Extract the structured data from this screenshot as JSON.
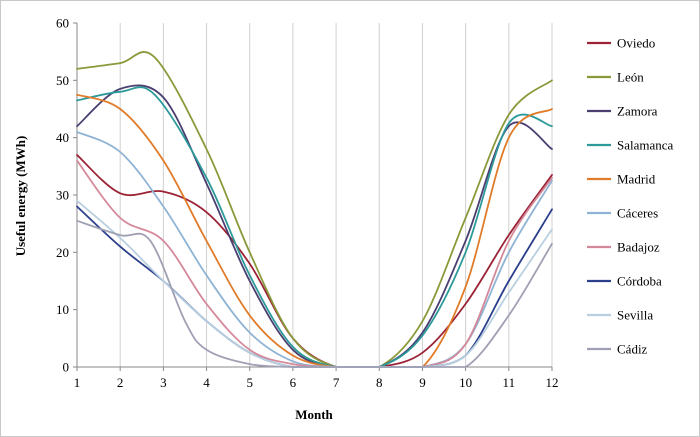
{
  "chart_data": {
    "type": "line",
    "title": "",
    "xlabel": "Month",
    "ylabel": "Useful energy  (MWh)",
    "xlim": [
      1,
      12
    ],
    "ylim": [
      0,
      60
    ],
    "x_ticks": [
      1,
      2,
      3,
      4,
      5,
      6,
      7,
      8,
      9,
      10,
      11,
      12
    ],
    "y_ticks": [
      0,
      10,
      20,
      30,
      40,
      50,
      60
    ],
    "grid": "vertical",
    "legend_position": "right",
    "series": [
      {
        "name": "Oviedo",
        "color": "#9b2335",
        "points": [
          [
            1,
            37
          ],
          [
            2,
            30.3
          ],
          [
            3,
            30.6
          ],
          [
            4,
            27
          ],
          [
            5,
            18
          ],
          [
            6,
            5
          ],
          [
            7,
            0
          ],
          [
            8,
            0
          ],
          [
            9,
            2.5
          ],
          [
            10,
            11
          ],
          [
            11,
            23
          ],
          [
            12,
            33.5
          ]
        ]
      },
      {
        "name": "León",
        "color": "#8a9a3a",
        "points": [
          [
            1,
            52
          ],
          [
            2,
            53
          ],
          [
            2.8,
            54
          ],
          [
            4,
            38
          ],
          [
            5,
            20
          ],
          [
            6,
            5
          ],
          [
            7,
            0
          ],
          [
            8,
            0
          ],
          [
            9,
            8
          ],
          [
            10,
            26
          ],
          [
            11,
            44
          ],
          [
            12,
            50
          ]
        ]
      },
      {
        "name": "Zamora",
        "color": "#4b3f72",
        "points": [
          [
            1,
            42
          ],
          [
            2,
            48.5
          ],
          [
            3,
            47
          ],
          [
            4,
            32
          ],
          [
            5,
            15
          ],
          [
            6,
            3
          ],
          [
            7,
            0
          ],
          [
            8,
            0
          ],
          [
            9,
            6
          ],
          [
            10,
            22
          ],
          [
            11,
            42
          ],
          [
            12,
            38
          ]
        ]
      },
      {
        "name": "Salamanca",
        "color": "#2d9a9a",
        "points": [
          [
            1,
            46.5
          ],
          [
            2,
            48
          ],
          [
            2.8,
            47.5
          ],
          [
            4,
            33
          ],
          [
            5,
            16
          ],
          [
            6,
            3.5
          ],
          [
            7,
            0
          ],
          [
            8,
            0
          ],
          [
            9,
            5.5
          ],
          [
            10,
            20
          ],
          [
            11,
            42.5
          ],
          [
            12,
            42
          ]
        ]
      },
      {
        "name": "Madrid",
        "color": "#e07b29",
        "points": [
          [
            1,
            47.5
          ],
          [
            2,
            45
          ],
          [
            3,
            36
          ],
          [
            4,
            22
          ],
          [
            5,
            9
          ],
          [
            6,
            2
          ],
          [
            7,
            0
          ],
          [
            8,
            0
          ],
          [
            9,
            0
          ],
          [
            10,
            14
          ],
          [
            11,
            40
          ],
          [
            12,
            45
          ]
        ]
      },
      {
        "name": "Cáceres",
        "color": "#8fb3d4",
        "points": [
          [
            1,
            41
          ],
          [
            2,
            37.5
          ],
          [
            3,
            28
          ],
          [
            4,
            16
          ],
          [
            5,
            6
          ],
          [
            6,
            1
          ],
          [
            7,
            0
          ],
          [
            8,
            0
          ],
          [
            9,
            0
          ],
          [
            10,
            4
          ],
          [
            11,
            20
          ],
          [
            12,
            32.5
          ]
        ]
      },
      {
        "name": "Badajoz",
        "color": "#d4899a",
        "points": [
          [
            1,
            36
          ],
          [
            2,
            26
          ],
          [
            3,
            22
          ],
          [
            4,
            11
          ],
          [
            5,
            3
          ],
          [
            6,
            0.5
          ],
          [
            7,
            0
          ],
          [
            8,
            0
          ],
          [
            9,
            0
          ],
          [
            10,
            4
          ],
          [
            11,
            22
          ],
          [
            12,
            33
          ]
        ]
      },
      {
        "name": "Córdoba",
        "color": "#2b3f8c",
        "points": [
          [
            1,
            28
          ],
          [
            2,
            21
          ],
          [
            3,
            15
          ],
          [
            4,
            8
          ],
          [
            5,
            2.5
          ],
          [
            6,
            0
          ],
          [
            7,
            0
          ],
          [
            8,
            0
          ],
          [
            9,
            0
          ],
          [
            10,
            2
          ],
          [
            11,
            15
          ],
          [
            12,
            27.5
          ]
        ]
      },
      {
        "name": "Sevilla",
        "color": "#b8cfe0",
        "points": [
          [
            1,
            29
          ],
          [
            2,
            22.5
          ],
          [
            3,
            15
          ],
          [
            4,
            8
          ],
          [
            5,
            2.5
          ],
          [
            6,
            0
          ],
          [
            7,
            0
          ],
          [
            8,
            0
          ],
          [
            9,
            0
          ],
          [
            10,
            2
          ],
          [
            11,
            13
          ],
          [
            12,
            24
          ]
        ]
      },
      {
        "name": "Cádiz",
        "color": "#a0a0b4",
        "points": [
          [
            1,
            25.5
          ],
          [
            2,
            23
          ],
          [
            2.7,
            22
          ],
          [
            3.5,
            8
          ],
          [
            4,
            3
          ],
          [
            5,
            0.5
          ],
          [
            6,
            0
          ],
          [
            7,
            0
          ],
          [
            8,
            0
          ],
          [
            9,
            0
          ],
          [
            10,
            0
          ],
          [
            11,
            9
          ],
          [
            12,
            21.5
          ]
        ]
      }
    ]
  }
}
